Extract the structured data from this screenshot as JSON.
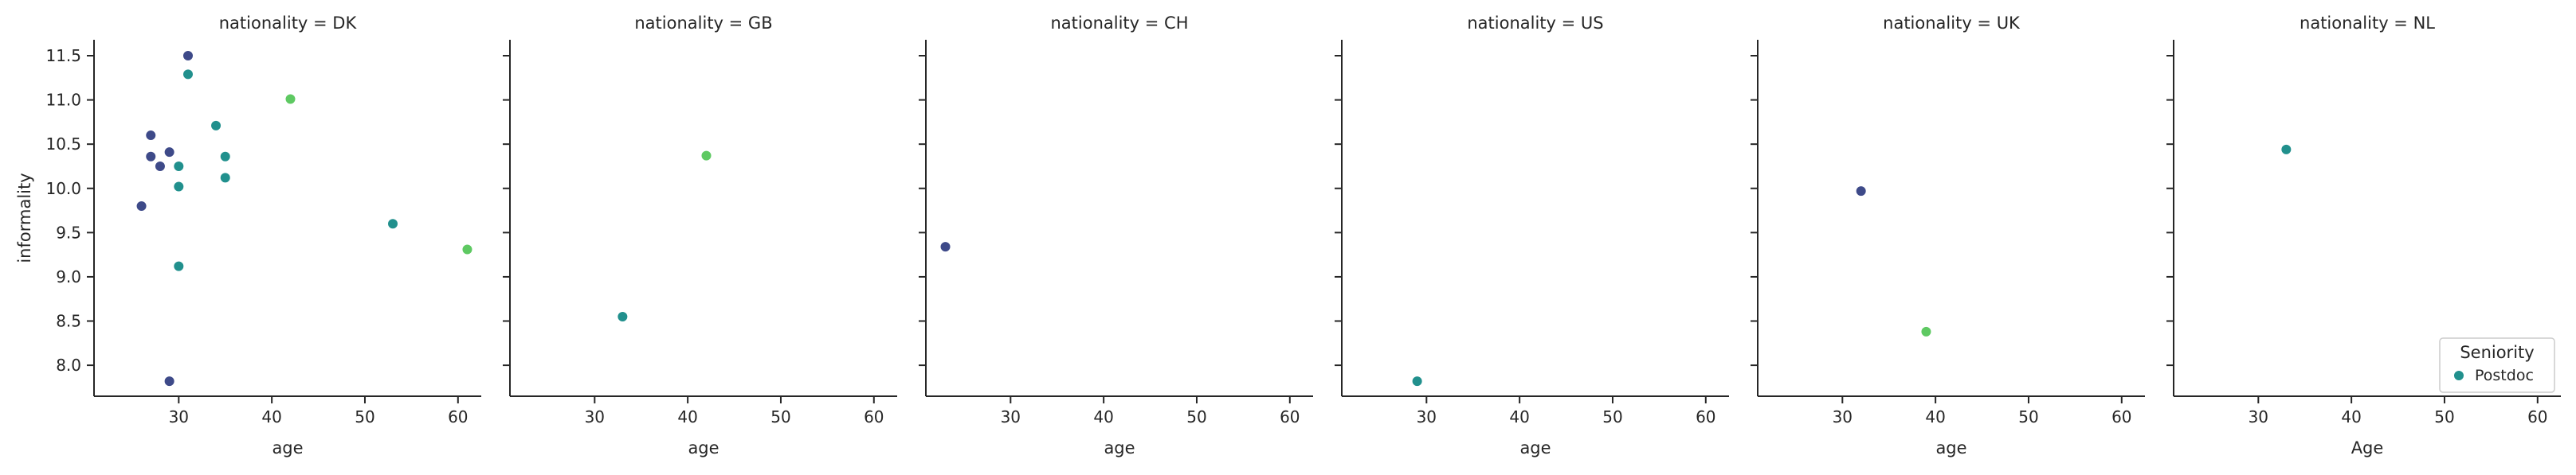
{
  "chart_data": {
    "type": "scatter",
    "facet_variable": "nationality",
    "ylabel": "informality",
    "ylim": [
      7.65,
      11.68
    ],
    "yticks": [
      8.0,
      8.5,
      9.0,
      9.5,
      10.0,
      10.5,
      11.0,
      11.5
    ],
    "xlim": [
      20.9,
      62.5
    ],
    "panels": [
      {
        "title": "nationality = DK",
        "xlabel": "age",
        "xticks": [
          30,
          40,
          50,
          60
        ],
        "points": [
          {
            "x": 26,
            "y": 9.8,
            "color": "#3e4a89"
          },
          {
            "x": 27,
            "y": 10.6,
            "color": "#3e4a89"
          },
          {
            "x": 27,
            "y": 10.36,
            "color": "#3e4a89"
          },
          {
            "x": 28,
            "y": 10.25,
            "color": "#3e4a89"
          },
          {
            "x": 29,
            "y": 10.41,
            "color": "#3e4a89"
          },
          {
            "x": 29,
            "y": 7.82,
            "color": "#3e4a89"
          },
          {
            "x": 30,
            "y": 10.25,
            "color": "#21908d"
          },
          {
            "x": 30,
            "y": 10.02,
            "color": "#21908d"
          },
          {
            "x": 30,
            "y": 9.12,
            "color": "#21908d"
          },
          {
            "x": 31,
            "y": 11.5,
            "color": "#3e4a89"
          },
          {
            "x": 31,
            "y": 11.29,
            "color": "#21908d"
          },
          {
            "x": 34,
            "y": 10.71,
            "color": "#21908d"
          },
          {
            "x": 35,
            "y": 10.36,
            "color": "#21908d"
          },
          {
            "x": 35,
            "y": 10.12,
            "color": "#21908d"
          },
          {
            "x": 42,
            "y": 11.01,
            "color": "#5ec962"
          },
          {
            "x": 53,
            "y": 9.6,
            "color": "#21908d"
          },
          {
            "x": 61,
            "y": 9.31,
            "color": "#5ec962"
          }
        ]
      },
      {
        "title": "nationality = GB",
        "xlabel": "age",
        "xticks": [
          30,
          40,
          50,
          60
        ],
        "points": [
          {
            "x": 42,
            "y": 10.37,
            "color": "#5ec962"
          },
          {
            "x": 33,
            "y": 8.55,
            "color": "#21908d"
          }
        ]
      },
      {
        "title": "nationality = CH",
        "xlabel": "age",
        "xticks": [
          30,
          40,
          50,
          60
        ],
        "points": [
          {
            "x": 23,
            "y": 9.34,
            "color": "#3e4a89"
          }
        ]
      },
      {
        "title": "nationality = US",
        "xlabel": "age",
        "xticks": [
          30,
          40,
          50,
          60
        ],
        "points": [
          {
            "x": 29,
            "y": 7.82,
            "color": "#21908d"
          }
        ]
      },
      {
        "title": "nationality = UK",
        "xlabel": "age",
        "xticks": [
          30,
          40,
          50,
          60
        ],
        "points": [
          {
            "x": 32,
            "y": 9.97,
            "color": "#3e4a89"
          },
          {
            "x": 39,
            "y": 8.38,
            "color": "#5ec962"
          }
        ]
      },
      {
        "title": "nationality = NL",
        "xlabel": "Age",
        "xticks": [
          30,
          40,
          50,
          60
        ],
        "points": [
          {
            "x": 33,
            "y": 10.44,
            "color": "#21908d"
          }
        ]
      }
    ],
    "legend": {
      "title": "Seniority",
      "placement": "bottom-right",
      "entries": [
        {
          "label": "Postdoc",
          "color": "#21908d"
        }
      ]
    },
    "grid": false
  }
}
